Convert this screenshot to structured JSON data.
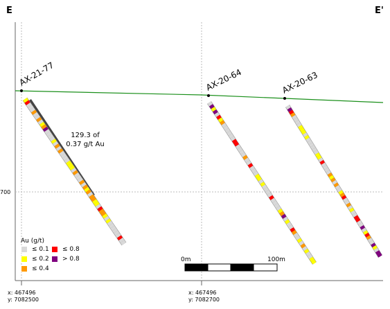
{
  "section": {
    "left_label": "E",
    "right_label": "E'",
    "y_tick_label": "700",
    "coords": [
      {
        "x": "x: 467496",
        "y": "y: 7082500"
      },
      {
        "x": "x: 467496",
        "y": "y: 7082700"
      }
    ]
  },
  "annotation": {
    "line1": "129.3 of",
    "line2": "0.37 g/t Au"
  },
  "holes": [
    {
      "name": "AX-21-77"
    },
    {
      "name": "AX-20-64"
    },
    {
      "name": "AX-20-63"
    }
  ],
  "legend": {
    "title": "Au (g/t)",
    "items": [
      {
        "label": "≤ 0.1",
        "color": "#d9d9d9"
      },
      {
        "label": "≤ 0.8",
        "color": "#ff0000"
      },
      {
        "label": "≤ 0.2",
        "color": "#ffff00"
      },
      {
        "label": "> 0.8",
        "color": "#7f007f"
      },
      {
        "label": "≤ 0.4",
        "color": "#ff9900"
      }
    ]
  },
  "scale_bar": {
    "start_label": "0m",
    "end_label": "100m"
  },
  "colors": {
    "topography": "#1a8f1a",
    "grid": "#bbbbbb",
    "intercept": "#444444",
    "hole_trace": "#888888"
  }
}
